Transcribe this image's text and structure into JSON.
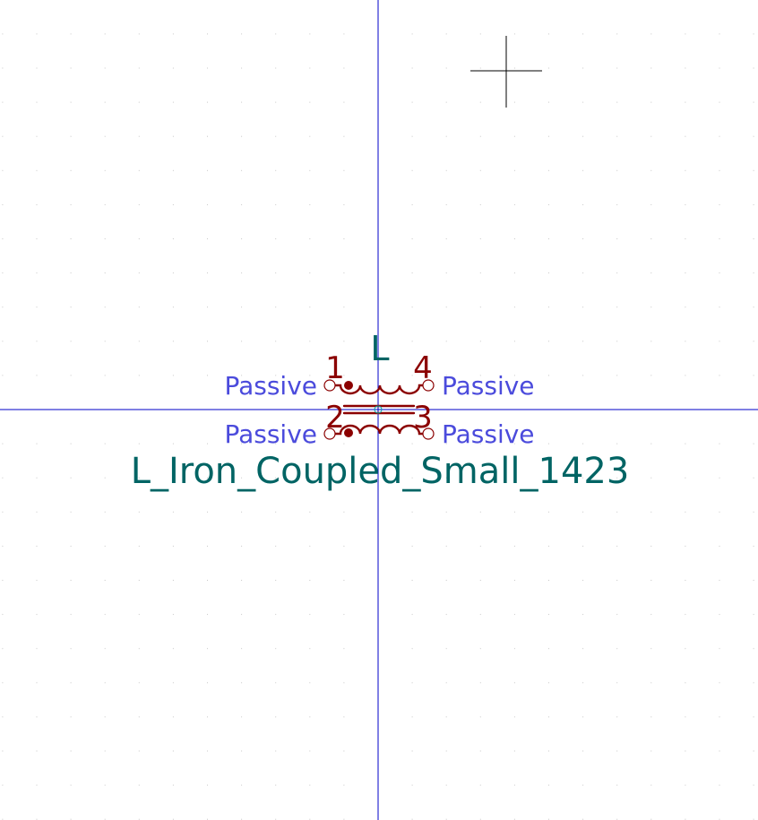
{
  "colors": {
    "background": "#ffffff",
    "grid_dot": "#c8c8c8",
    "axis": "#0000c8",
    "cursor": "#000000",
    "symbol": "#8b0000",
    "field_text": "#006464",
    "pin_type_text": "#4b4bdc"
  },
  "symbol": {
    "reference": "L",
    "value": "L_Iron_Coupled_Small_1423",
    "pins": [
      {
        "number": "1",
        "type": "Passive"
      },
      {
        "number": "4",
        "type": "Passive"
      },
      {
        "number": "2",
        "type": "Passive"
      },
      {
        "number": "3",
        "type": "Passive"
      }
    ]
  },
  "icons": {
    "cursor": "crosshair-cursor-icon",
    "origin": "origin-marker-icon"
  }
}
